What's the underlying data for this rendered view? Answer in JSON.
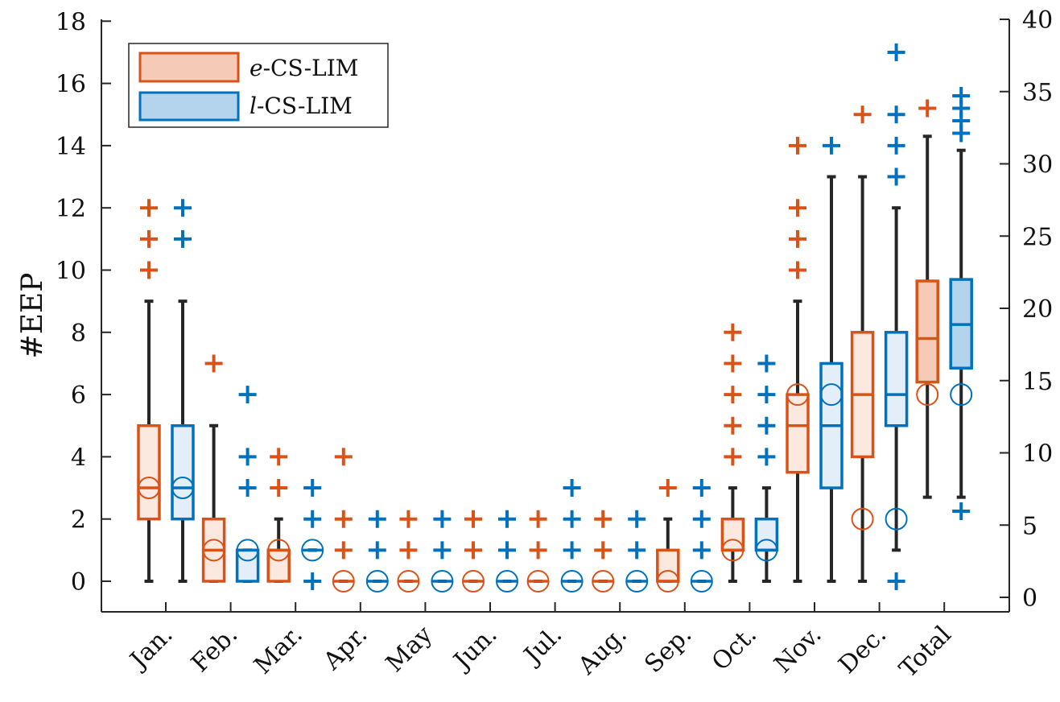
{
  "chart_data": {
    "type": "boxplot",
    "ylabel": "#EEP",
    "ylim_left": [
      -1,
      18
    ],
    "yticks_left": [
      0,
      2,
      4,
      6,
      8,
      10,
      12,
      14,
      16,
      18
    ],
    "ylim_right": [
      -1,
      40
    ],
    "yticks_right": [
      0,
      5,
      10,
      15,
      20,
      25,
      30,
      35,
      40
    ],
    "categories": [
      "Jan.",
      "Feb.",
      "Mar.",
      "Apr.",
      "May",
      "Jun.",
      "Jul.",
      "Aug.",
      "Sep.",
      "Oct.",
      "Nov.",
      "Dec.",
      "Total"
    ],
    "legend": {
      "position": "top-left",
      "entries": [
        {
          "prefix": "e",
          "suffix": "-CS-LIM",
          "color": "#D95319",
          "fill": "#F5CBB8"
        },
        {
          "prefix": "l",
          "suffix": "-CS-LIM",
          "color": "#0072BD",
          "fill": "#B3D4EC"
        }
      ]
    },
    "series": [
      {
        "name": "e-CS-LIM",
        "color": "#D95319",
        "fill": "#FBE8DF",
        "fill_total": "#F5CBB8",
        "boxes": [
          {
            "q1": 2,
            "median": 3,
            "q3": 5,
            "wlow": 0,
            "whigh": 9,
            "mean": 3,
            "outliers": [
              10,
              11,
              12
            ]
          },
          {
            "q1": 0,
            "median": 1,
            "q3": 2,
            "wlow": 0,
            "whigh": 5,
            "mean": 1,
            "outliers": [
              7
            ]
          },
          {
            "q1": 0,
            "median": 1,
            "q3": 1,
            "wlow": 0,
            "whigh": 2,
            "mean": 1,
            "outliers": [
              3,
              4
            ]
          },
          {
            "q1": 0,
            "median": 0,
            "q3": 0,
            "wlow": 0,
            "whigh": 0,
            "mean": 0,
            "outliers": [
              1,
              2,
              4
            ]
          },
          {
            "q1": 0,
            "median": 0,
            "q3": 0,
            "wlow": 0,
            "whigh": 0,
            "mean": 0,
            "outliers": [
              1,
              2
            ]
          },
          {
            "q1": 0,
            "median": 0,
            "q3": 0,
            "wlow": 0,
            "whigh": 0,
            "mean": 0,
            "outliers": [
              1,
              2
            ]
          },
          {
            "q1": 0,
            "median": 0,
            "q3": 0,
            "wlow": 0,
            "whigh": 0,
            "mean": 0,
            "outliers": [
              1,
              2
            ]
          },
          {
            "q1": 0,
            "median": 0,
            "q3": 0,
            "wlow": 0,
            "whigh": 0,
            "mean": 0,
            "outliers": [
              1,
              2
            ]
          },
          {
            "q1": 0,
            "median": 0,
            "q3": 1,
            "wlow": 0,
            "whigh": 2,
            "mean": 0,
            "outliers": [
              3
            ]
          },
          {
            "q1": 1,
            "median": 1,
            "q3": 2,
            "wlow": 0,
            "whigh": 3,
            "mean": 1,
            "outliers": [
              4,
              5,
              6,
              7,
              8
            ]
          },
          {
            "q1": 3.5,
            "median": 5,
            "q3": 6,
            "wlow": 0,
            "whigh": 9,
            "mean": 6,
            "outliers": [
              10,
              11,
              12,
              14
            ]
          },
          {
            "q1": 4,
            "median": 6,
            "q3": 8,
            "wlow": 0,
            "whigh": 13,
            "mean": 2,
            "outliers": [
              15
            ]
          },
          {
            "q1": 6.4,
            "median": 7.8,
            "q3": 9.65,
            "wlow": 2.7,
            "whigh": 14.3,
            "mean": 6,
            "outliers": [
              15.2
            ]
          }
        ]
      },
      {
        "name": "l-CS-LIM",
        "color": "#0072BD",
        "fill": "#E3EEF8",
        "fill_total": "#B3D4EC",
        "boxes": [
          {
            "q1": 2,
            "median": 3,
            "q3": 5,
            "wlow": 0,
            "whigh": 9,
            "mean": 3,
            "outliers": [
              11,
              12
            ]
          },
          {
            "q1": 0,
            "median": 1,
            "q3": 1,
            "wlow": 0,
            "whigh": 1,
            "mean": 1,
            "outliers": [
              3,
              4,
              6
            ]
          },
          {
            "q1": 1,
            "median": 1,
            "q3": 1,
            "wlow": 1,
            "whigh": 1,
            "mean": 1,
            "outliers": [
              0,
              2,
              3
            ]
          },
          {
            "q1": 0,
            "median": 0,
            "q3": 0,
            "wlow": 0,
            "whigh": 0,
            "mean": 0,
            "outliers": [
              1,
              2
            ]
          },
          {
            "q1": 0,
            "median": 0,
            "q3": 0,
            "wlow": 0,
            "whigh": 0,
            "mean": 0,
            "outliers": [
              1,
              2
            ]
          },
          {
            "q1": 0,
            "median": 0,
            "q3": 0,
            "wlow": 0,
            "whigh": 0,
            "mean": 0,
            "outliers": [
              1,
              2
            ]
          },
          {
            "q1": 0,
            "median": 0,
            "q3": 0,
            "wlow": 0,
            "whigh": 0,
            "mean": 0,
            "outliers": [
              1,
              2,
              3
            ]
          },
          {
            "q1": 0,
            "median": 0,
            "q3": 0,
            "wlow": 0,
            "whigh": 0,
            "mean": 0,
            "outliers": [
              1,
              2
            ]
          },
          {
            "q1": 0,
            "median": 0,
            "q3": 0,
            "wlow": 0,
            "whigh": 0,
            "mean": 0,
            "outliers": [
              1,
              2,
              3
            ]
          },
          {
            "q1": 1,
            "median": 1,
            "q3": 2,
            "wlow": 0,
            "whigh": 3,
            "mean": 1,
            "outliers": [
              4,
              5,
              6,
              7
            ]
          },
          {
            "q1": 3,
            "median": 5,
            "q3": 7,
            "wlow": 0,
            "whigh": 13,
            "mean": 6,
            "outliers": [
              14
            ]
          },
          {
            "q1": 5,
            "median": 6,
            "q3": 8,
            "wlow": 1,
            "whigh": 12,
            "mean": 2,
            "outliers": [
              0,
              13,
              14,
              15,
              17
            ]
          },
          {
            "q1": 6.85,
            "median": 8.25,
            "q3": 9.7,
            "wlow": 2.7,
            "whigh": 13.85,
            "mean": 6,
            "outliers": [
              2.25,
              14.4,
              14.8,
              15.2,
              15.6
            ]
          }
        ]
      }
    ]
  }
}
